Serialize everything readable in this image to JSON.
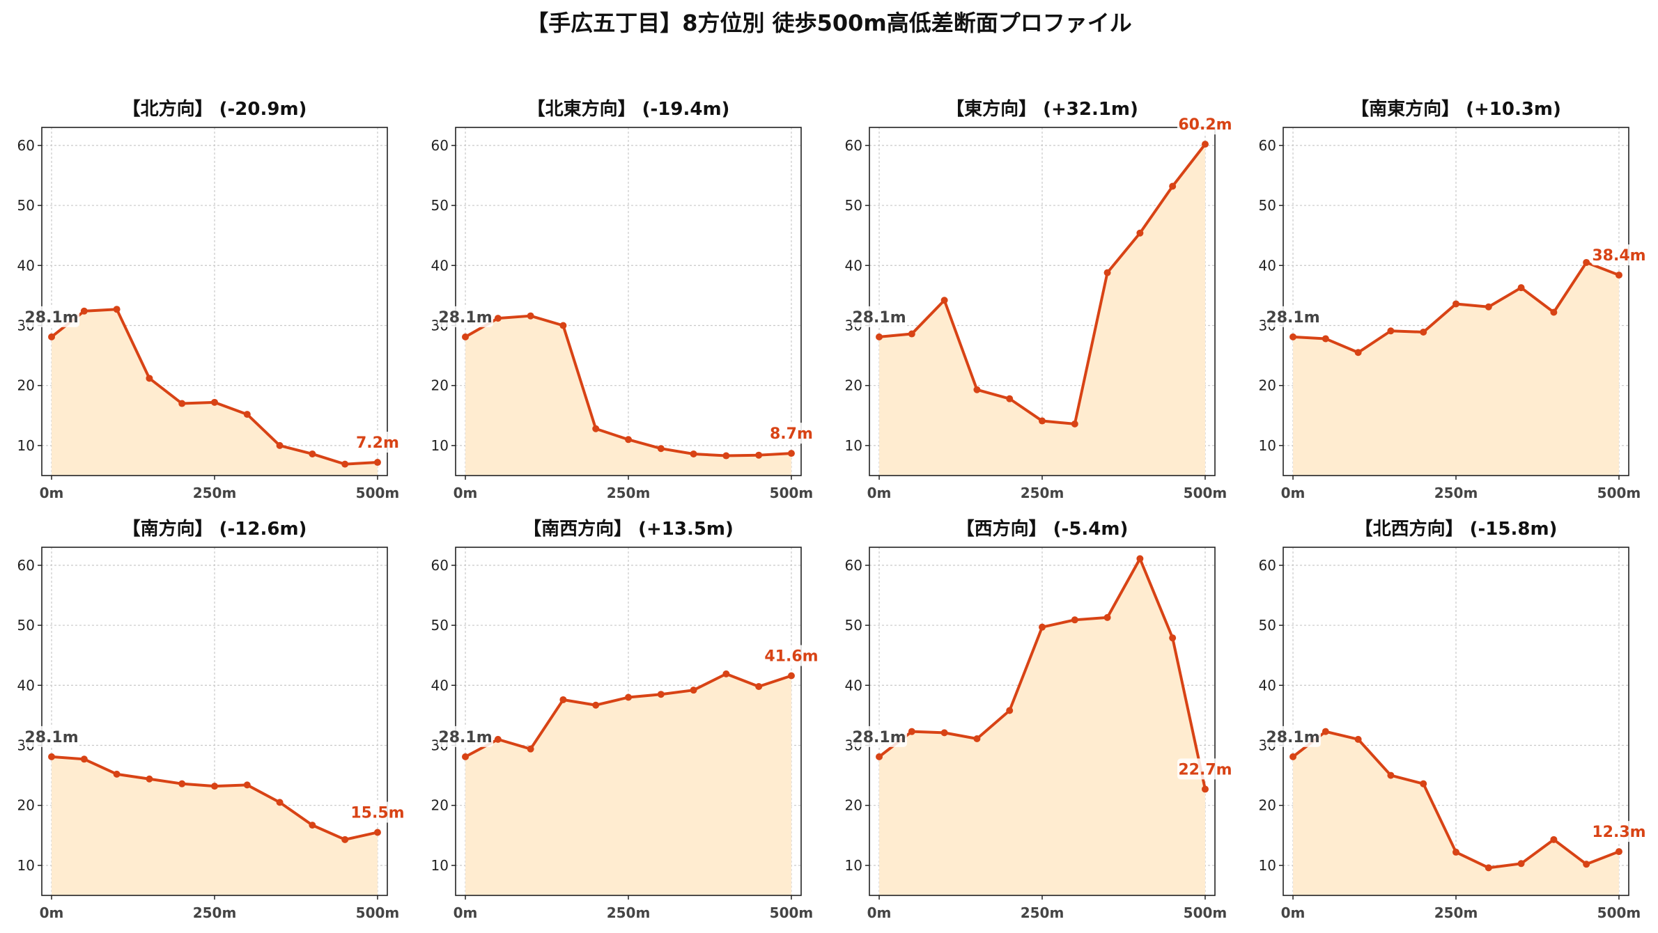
{
  "figure_title": "【手広五丁目】8方位別 徒歩500m高低差断面プロファイル",
  "colors": {
    "line": "#d84315",
    "fill": "#ffecd0",
    "grid": "#c8c8c8",
    "start_label": "#444444",
    "end_label": "#d84315"
  },
  "chart_data": [
    {
      "type": "area",
      "title": "【北方向】 (-20.9m)",
      "x_ticks": [
        "0m",
        "250m",
        "500m"
      ],
      "y_ticks": [
        10,
        20,
        30,
        40,
        50,
        60
      ],
      "xlim": [
        -15,
        515
      ],
      "ylim": [
        5,
        63
      ],
      "grid": true,
      "x": [
        0,
        50,
        100,
        150,
        200,
        250,
        300,
        350,
        400,
        450,
        500
      ],
      "values": [
        28.1,
        32.4,
        32.7,
        21.2,
        17.0,
        17.2,
        15.2,
        10.0,
        8.6,
        6.9,
        7.2
      ],
      "start_label": "28.1m",
      "end_label": "7.2m"
    },
    {
      "type": "area",
      "title": "【北東方向】 (-19.4m)",
      "x_ticks": [
        "0m",
        "250m",
        "500m"
      ],
      "y_ticks": [
        10,
        20,
        30,
        40,
        50,
        60
      ],
      "xlim": [
        -15,
        515
      ],
      "ylim": [
        5,
        63
      ],
      "grid": true,
      "x": [
        0,
        50,
        100,
        150,
        200,
        250,
        300,
        350,
        400,
        450,
        500
      ],
      "values": [
        28.1,
        31.2,
        31.6,
        30.0,
        12.8,
        11.0,
        9.5,
        8.6,
        8.3,
        8.4,
        8.7
      ],
      "start_label": "28.1m",
      "end_label": "8.7m"
    },
    {
      "type": "area",
      "title": "【東方向】 (+32.1m)",
      "x_ticks": [
        "0m",
        "250m",
        "500m"
      ],
      "y_ticks": [
        10,
        20,
        30,
        40,
        50,
        60
      ],
      "xlim": [
        -15,
        515
      ],
      "ylim": [
        5,
        63
      ],
      "grid": true,
      "x": [
        0,
        50,
        100,
        150,
        200,
        250,
        300,
        350,
        400,
        450,
        500
      ],
      "values": [
        28.1,
        28.6,
        34.2,
        19.3,
        17.8,
        14.1,
        13.6,
        38.8,
        45.4,
        53.2,
        60.2
      ],
      "start_label": "28.1m",
      "end_label": "60.2m"
    },
    {
      "type": "area",
      "title": "【南東方向】 (+10.3m)",
      "x_ticks": [
        "0m",
        "250m",
        "500m"
      ],
      "y_ticks": [
        10,
        20,
        30,
        40,
        50,
        60
      ],
      "xlim": [
        -15,
        515
      ],
      "ylim": [
        5,
        63
      ],
      "grid": true,
      "x": [
        0,
        50,
        100,
        150,
        200,
        250,
        300,
        350,
        400,
        450,
        500
      ],
      "values": [
        28.1,
        27.8,
        25.5,
        29.1,
        28.9,
        33.6,
        33.1,
        36.3,
        32.2,
        40.5,
        38.4
      ],
      "start_label": "28.1m",
      "end_label": "38.4m"
    },
    {
      "type": "area",
      "title": "【南方向】 (-12.6m)",
      "x_ticks": [
        "0m",
        "250m",
        "500m"
      ],
      "y_ticks": [
        10,
        20,
        30,
        40,
        50,
        60
      ],
      "xlim": [
        -15,
        515
      ],
      "ylim": [
        5,
        63
      ],
      "grid": true,
      "x": [
        0,
        50,
        100,
        150,
        200,
        250,
        300,
        350,
        400,
        450,
        500
      ],
      "values": [
        28.1,
        27.7,
        25.2,
        24.4,
        23.6,
        23.2,
        23.4,
        20.5,
        16.7,
        14.3,
        15.5
      ],
      "start_label": "28.1m",
      "end_label": "15.5m"
    },
    {
      "type": "area",
      "title": "【南西方向】 (+13.5m)",
      "x_ticks": [
        "0m",
        "250m",
        "500m"
      ],
      "y_ticks": [
        10,
        20,
        30,
        40,
        50,
        60
      ],
      "xlim": [
        -15,
        515
      ],
      "ylim": [
        5,
        63
      ],
      "grid": true,
      "x": [
        0,
        50,
        100,
        150,
        200,
        250,
        300,
        350,
        400,
        450,
        500
      ],
      "values": [
        28.1,
        31.0,
        29.4,
        37.6,
        36.7,
        38.0,
        38.5,
        39.2,
        41.9,
        39.8,
        41.6
      ],
      "start_label": "28.1m",
      "end_label": "41.6m"
    },
    {
      "type": "area",
      "title": "【西方向】 (-5.4m)",
      "x_ticks": [
        "0m",
        "250m",
        "500m"
      ],
      "y_ticks": [
        10,
        20,
        30,
        40,
        50,
        60
      ],
      "xlim": [
        -15,
        515
      ],
      "ylim": [
        5,
        63
      ],
      "grid": true,
      "x": [
        0,
        50,
        100,
        150,
        200,
        250,
        300,
        350,
        400,
        450,
        500
      ],
      "values": [
        28.1,
        32.3,
        32.1,
        31.1,
        35.8,
        49.7,
        50.9,
        51.3,
        61.1,
        47.9,
        22.7
      ],
      "start_label": "28.1m",
      "end_label": "22.7m"
    },
    {
      "type": "area",
      "title": "【北西方向】 (-15.8m)",
      "x_ticks": [
        "0m",
        "250m",
        "500m"
      ],
      "y_ticks": [
        10,
        20,
        30,
        40,
        50,
        60
      ],
      "xlim": [
        -15,
        515
      ],
      "ylim": [
        5,
        63
      ],
      "grid": true,
      "x": [
        0,
        50,
        100,
        150,
        200,
        250,
        300,
        350,
        400,
        450,
        500
      ],
      "values": [
        28.1,
        32.3,
        31.0,
        25.0,
        23.6,
        12.2,
        9.6,
        10.3,
        14.3,
        10.2,
        12.3
      ],
      "start_label": "28.1m",
      "end_label": "12.3m"
    }
  ]
}
